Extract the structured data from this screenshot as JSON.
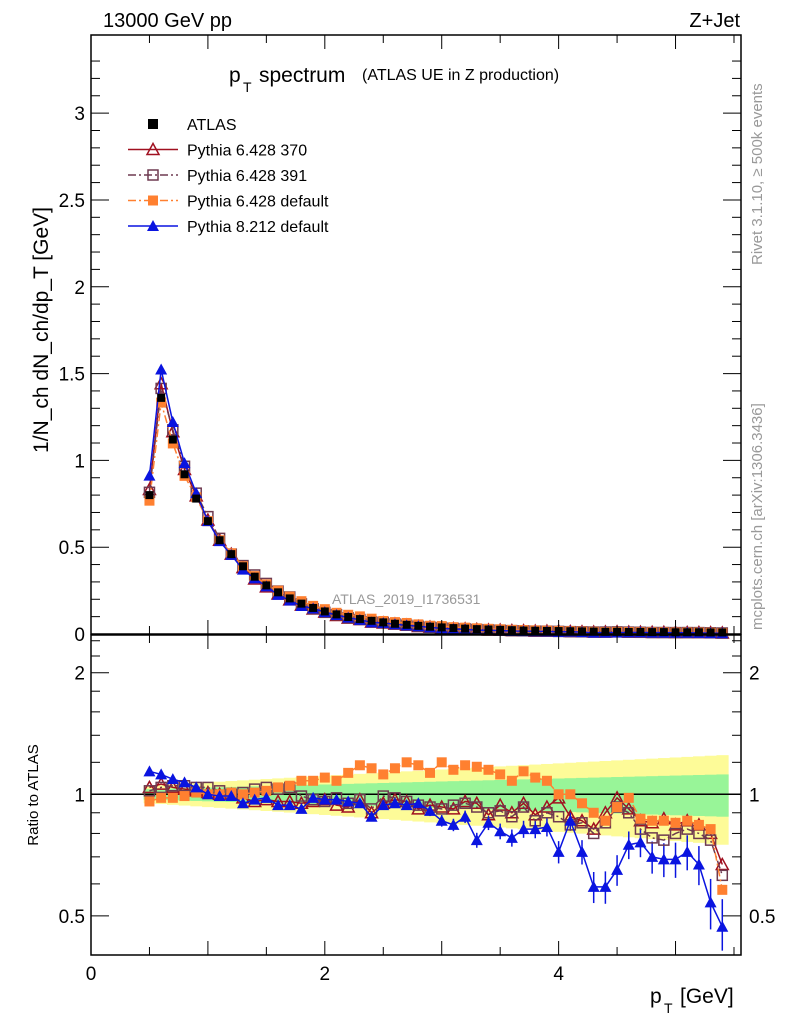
{
  "chart_data": [
    {
      "type": "line",
      "panel": "main",
      "title": "p_T spectrum",
      "title_main": "p",
      "title_sub": "T",
      "title_rest": "spectrum",
      "subtitle": "(ATLAS UE in Z production)",
      "top_left": "13000 GeV pp",
      "top_right": "Z+Jet",
      "ylabel": "1/N_ch dN_ch/dp_T [GeV]",
      "watermark": "ATLAS_2019_I1736531",
      "side_label_top": "Rivet 3.1.10, ≥ 500k events",
      "side_label_bottom": "mcplots.cern.ch [arXiv:1306.3436]",
      "xlim": [
        0,
        5.56
      ],
      "ylim": [
        0,
        3.45
      ],
      "yticks": [
        "0",
        "0.5",
        "1",
        "1.5",
        "2",
        "2.5",
        "3"
      ],
      "ytick_values": [
        0,
        0.5,
        1,
        1.5,
        2,
        2.5,
        3
      ],
      "x_start": 0.5,
      "x_step": 0.1,
      "atlas": [
        0.8,
        1.36,
        1.12,
        0.92,
        0.78,
        0.65,
        0.54,
        0.46,
        0.39,
        0.33,
        0.28,
        0.24,
        0.205,
        0.175,
        0.15,
        0.13,
        0.113,
        0.098,
        0.086,
        0.076,
        0.067,
        0.059,
        0.053,
        0.047,
        0.042,
        0.038,
        0.034,
        0.031,
        0.028,
        0.026,
        0.024,
        0.022,
        0.02,
        0.019,
        0.018,
        0.017,
        0.016,
        0.015,
        0.014,
        0.013,
        0.013,
        0.012,
        0.012,
        0.011,
        0.011,
        0.01,
        0.01,
        0.01,
        0.009,
        0.009
      ],
      "legend": [
        {
          "name": "ATLAS",
          "color": "#000000",
          "marker": "filled-square",
          "line": "none"
        },
        {
          "name": "Pythia 6.428 370",
          "color": "#a01020",
          "marker": "open-triangle",
          "line": "solid"
        },
        {
          "name": "Pythia 6.428 391",
          "color": "#6e3a50",
          "marker": "open-square",
          "line": "dashdot"
        },
        {
          "name": "Pythia 6.428 default",
          "color": "#ff8030",
          "marker": "filled-square",
          "line": "dashdot"
        },
        {
          "name": "Pythia 8.212 default",
          "color": "#0a14e0",
          "marker": "filled-triangle",
          "line": "solid"
        }
      ],
      "legend_position": "top-left"
    },
    {
      "type": "line",
      "panel": "ratio",
      "ylabel": "Ratio to ATLAS",
      "xlabel": "p_T [GeV]",
      "xlabel_main": "p",
      "xlabel_sub": "T",
      "xlabel_rest": "[GeV]",
      "yscale": "log",
      "ylim": [
        0.4,
        2.48
      ],
      "yticks": [
        "0.5",
        "1",
        "2"
      ],
      "ytick_values": [
        0.5,
        1,
        2
      ],
      "xticks": [
        "0",
        "2",
        "4"
      ],
      "xtick_values": [
        0,
        2,
        4
      ],
      "green_band_halfwidth_range": [
        0.03,
        0.12
      ],
      "yellow_band_halfwidth_range": [
        0.05,
        0.25
      ],
      "band_colors": {
        "green": "#98f598",
        "yellow": "#fdfb98"
      },
      "blue_error_range": [
        0.01,
        0.08
      ],
      "series": [
        {
          "name": "Pythia 6.428 370",
          "values": [
            1.04,
            1.06,
            1.04,
            1.03,
            1.02,
            1.01,
            1.0,
            1.0,
            0.98,
            0.96,
            0.97,
            0.96,
            0.96,
            0.95,
            0.96,
            0.97,
            0.94,
            0.93,
            0.97,
            0.9,
            0.95,
            0.97,
            0.96,
            0.92,
            0.94,
            0.93,
            0.92,
            0.96,
            0.95,
            0.89,
            0.94,
            0.9,
            0.95,
            0.89,
            0.93,
            0.98,
            0.88,
            0.86,
            0.82,
            0.9,
            0.98,
            0.92,
            0.86,
            0.85,
            0.87,
            0.84,
            0.86,
            0.84,
            0.8,
            0.67
          ]
        },
        {
          "name": "Pythia 6.428 391",
          "values": [
            1.02,
            1.04,
            1.05,
            1.05,
            1.04,
            1.04,
            1.02,
            1.0,
            1.01,
            1.03,
            1.04,
            1.03,
            1.04,
            0.99,
            0.97,
            0.96,
            0.98,
            0.95,
            0.97,
            0.92,
            0.99,
            0.98,
            0.96,
            0.94,
            0.93,
            0.92,
            0.94,
            0.95,
            0.93,
            0.9,
            0.91,
            0.88,
            0.93,
            0.86,
            0.9,
            0.88,
            0.84,
            0.85,
            0.8,
            0.85,
            0.93,
            0.9,
            0.82,
            0.78,
            0.77,
            0.8,
            0.82,
            0.8,
            0.77,
            0.63
          ]
        },
        {
          "name": "Pythia 6.428 default",
          "values": [
            0.96,
            0.98,
            0.98,
            0.99,
            1.01,
            1.0,
            1.0,
            1.01,
            1.0,
            1.01,
            1.02,
            1.04,
            1.05,
            1.08,
            1.08,
            1.1,
            1.08,
            1.13,
            1.18,
            1.16,
            1.12,
            1.16,
            1.2,
            1.18,
            1.13,
            1.2,
            1.15,
            1.18,
            1.17,
            1.15,
            1.12,
            1.08,
            1.14,
            1.1,
            1.08,
            1.0,
            1.0,
            0.95,
            0.9,
            0.86,
            0.93,
            0.98,
            0.87,
            0.86,
            0.86,
            0.85,
            0.86,
            0.84,
            0.82,
            0.58
          ]
        },
        {
          "name": "Pythia 8.212 default",
          "values": [
            1.14,
            1.12,
            1.09,
            1.07,
            1.04,
            1.0,
            0.99,
            0.99,
            0.95,
            0.97,
            0.98,
            0.94,
            0.94,
            0.92,
            0.98,
            0.97,
            0.97,
            0.96,
            0.95,
            0.88,
            0.94,
            0.95,
            0.94,
            0.95,
            0.91,
            0.86,
            0.84,
            0.88,
            0.77,
            0.85,
            0.81,
            0.78,
            0.82,
            0.82,
            0.83,
            0.72,
            0.86,
            0.72,
            0.59,
            0.59,
            0.65,
            0.75,
            0.76,
            0.7,
            0.69,
            0.69,
            0.72,
            0.67,
            0.54,
            0.47
          ]
        }
      ]
    }
  ]
}
